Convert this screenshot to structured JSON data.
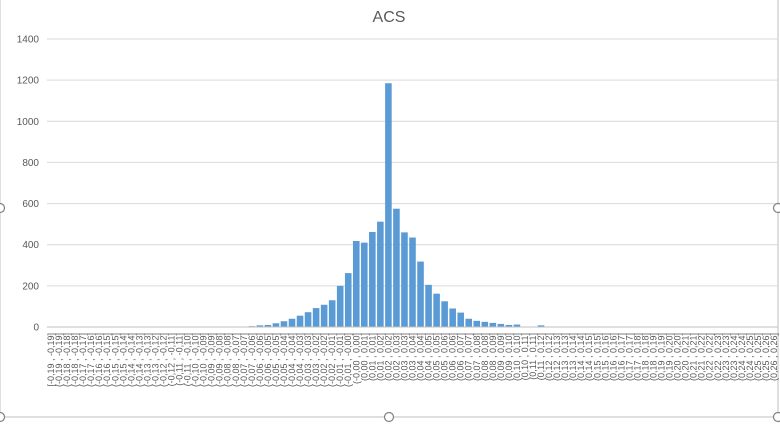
{
  "chart_data": {
    "type": "bar",
    "title": "ACS",
    "xlabel": "",
    "ylabel": "",
    "ylim": [
      0,
      1400
    ],
    "yticks": [
      0,
      200,
      400,
      600,
      800,
      1000,
      1200,
      1400
    ],
    "grid": true,
    "legend": "none",
    "bar_color": "#5b9bd5",
    "categories": [
      "[-0,19 , -0,19]",
      "(-0,19 , -0,19]",
      "(-0,18 , -0,18]",
      "(-0,18 , -0,18]",
      "(-0,17 , -0,17]",
      "(-0,17 , -0,16]",
      "(-0,16 , -0,16]",
      "(-0,16 , -0,15]",
      "(-0,15 , -0,15]",
      "(-0,15 , -0,14]",
      "(-0,14 , -0,14]",
      "(-0,14 , -0,13]",
      "(-0,13 , -0,13]",
      "(-0,13 , -0,12]",
      "(-0,12 , -0,12]",
      "(-0,12 , -0,11]",
      "(-0,11 , -0,11]",
      "(-0,11 , -0,10]",
      "(-0,10 , -0,10]",
      "(-0,10 , -0,09]",
      "(-0,09 , -0,09]",
      "(-0,09 , -0,08]",
      "(-0,08 , -0,08]",
      "(-0,08 , -0,07]",
      "(-0,07 , -0,07]",
      "(-0,07 , -0,06]",
      "(-0,06 , -0,06]",
      "(-0,06 , -0,05]",
      "(-0,05 , -0,05]",
      "(-0,05 , -0,04]",
      "(-0,04 , -0,04]",
      "(-0,04 , -0,03]",
      "(-0,03 , -0,03]",
      "(-0,03 , -0,02]",
      "(-0,02 , -0,02]",
      "(-0,02 , -0,01]",
      "(-0,01 , -0,01]",
      "(-0,01 , -0,00]",
      "(-0,00 , 0,00]",
      "(0,00 , 0,01]",
      "(0,01 , 0,01]",
      "(0,01 , 0,02]",
      "(0,02 , 0,02]",
      "(0,02 , 0,03]",
      "(0,03 , 0,03]",
      "(0,03 , 0,04]",
      "(0,04 , 0,04]",
      "(0,04 , 0,05]",
      "(0,05 , 0,05]",
      "(0,05 , 0,06]",
      "(0,06 , 0,06]",
      "(0,06 , 0,07]",
      "(0,07 , 0,07]",
      "(0,07 , 0,08]",
      "(0,08 , 0,08]",
      "(0,08 , 0,09]",
      "(0,09 , 0,09]",
      "(0,09 , 0,10]",
      "(0,10 , 0,10]",
      "(0,10 , 0,11]",
      "(0,11 , 0,11]",
      "(0,11 , 0,12]",
      "(0,12 , 0,12]",
      "(0,12 , 0,13]",
      "(0,13 , 0,13]",
      "(0,13 , 0,14]",
      "(0,14 , 0,14]",
      "(0,14 , 0,15]",
      "(0,15 , 0,15]",
      "(0,15 , 0,16]",
      "(0,16 , 0,16]",
      "(0,16 , 0,17]",
      "(0,17 , 0,17]",
      "(0,17 , 0,18]",
      "(0,18 , 0,18]",
      "(0,18 , 0,19]",
      "(0,19 , 0,19]",
      "(0,19 , 0,20]",
      "(0,20 , 0,20]",
      "(0,20 , 0,21]",
      "(0,21 , 0,21]",
      "(0,21 , 0,22]",
      "(0,22 , 0,22]",
      "(0,22 , 0,23]",
      "(0,23 , 0,23]",
      "(0,23 , 0,24]",
      "(0,24 , 0,24]",
      "(0,24 , 0,25]",
      "(0,25 , 0,25]",
      "(0,25 , 0,26]",
      "(0,26 , 0,26]"
    ],
    "values": [
      0,
      0,
      0,
      0,
      0,
      0,
      0,
      0,
      0,
      0,
      0,
      0,
      0,
      0,
      0,
      0,
      0,
      0,
      0,
      0,
      0,
      0,
      0,
      0,
      2,
      4,
      8,
      10,
      18,
      28,
      40,
      55,
      72,
      92,
      108,
      130,
      200,
      262,
      418,
      410,
      462,
      512,
      1185,
      575,
      460,
      435,
      318,
      205,
      162,
      125,
      90,
      70,
      40,
      30,
      25,
      20,
      15,
      10,
      12,
      2,
      0,
      8,
      0,
      0,
      0,
      0,
      0,
      0,
      0,
      0,
      0,
      0,
      0,
      0,
      0,
      0,
      0,
      0,
      0,
      0,
      0,
      0,
      0,
      0,
      0,
      0,
      0,
      0,
      0,
      0,
      0
    ]
  }
}
